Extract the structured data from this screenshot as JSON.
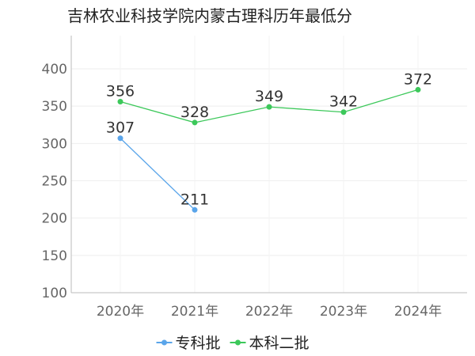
{
  "chart_data": {
    "type": "line",
    "title": "吉林农业科技学院内蒙古理科历年最低分",
    "categories": [
      "2020年",
      "2021年",
      "2022年",
      "2023年",
      "2024年"
    ],
    "ylim": [
      100,
      400
    ],
    "yticks": [
      100,
      150,
      200,
      250,
      300,
      350,
      400
    ],
    "grid": true,
    "legend": "bottom",
    "series": [
      {
        "name": "专科批",
        "color": "#5aa5ea",
        "values": [
          307,
          211,
          null,
          null,
          null
        ]
      },
      {
        "name": "本科二批",
        "color": "#3cc85a",
        "values": [
          356,
          328,
          349,
          342,
          372
        ]
      }
    ]
  }
}
